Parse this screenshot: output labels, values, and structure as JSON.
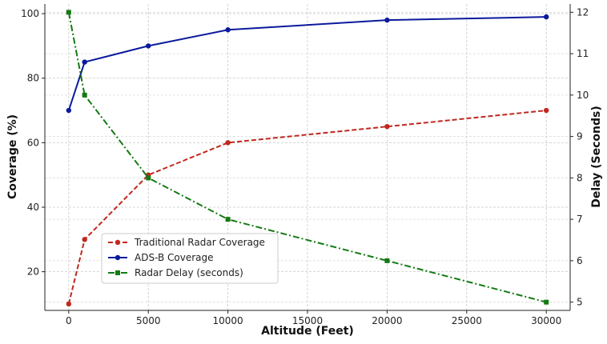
{
  "chart_data": {
    "type": "line",
    "title": "",
    "x": [
      0,
      1000,
      5000,
      10000,
      20000,
      30000
    ],
    "xlabel": "Altitude (Feet)",
    "ylabel": "Coverage (%)",
    "y2label": "Delay (Seconds)",
    "xlim": [
      -1500,
      31500
    ],
    "ylim": [
      8,
      103
    ],
    "y2lim": [
      4.8,
      12.2
    ],
    "xticks": [
      "0",
      "5000",
      "10000",
      "15000",
      "20000",
      "25000",
      "30000"
    ],
    "yticks": [
      "20",
      "40",
      "60",
      "80",
      "100"
    ],
    "y2ticks": [
      "5",
      "6",
      "7",
      "8",
      "9",
      "10",
      "11",
      "12"
    ],
    "grid": true,
    "legend_position": "lower-left",
    "series": [
      {
        "name": "Traditional Radar Coverage",
        "axis": "left",
        "values": [
          10,
          30,
          50,
          60,
          65,
          70
        ],
        "color": "#c0281e",
        "line_style": "dashed",
        "marker": "circle"
      },
      {
        "name": "ADS-B Coverage",
        "axis": "left",
        "values": [
          70,
          85,
          90,
          95,
          98,
          99
        ],
        "color": "#0b1a9c",
        "line_style": "solid",
        "marker": "circle"
      },
      {
        "name": "Radar Delay (seconds)",
        "axis": "right",
        "values": [
          12,
          10,
          8,
          7,
          6,
          5
        ],
        "color": "#147a14",
        "line_style": "dashdot",
        "marker": "square"
      }
    ]
  }
}
